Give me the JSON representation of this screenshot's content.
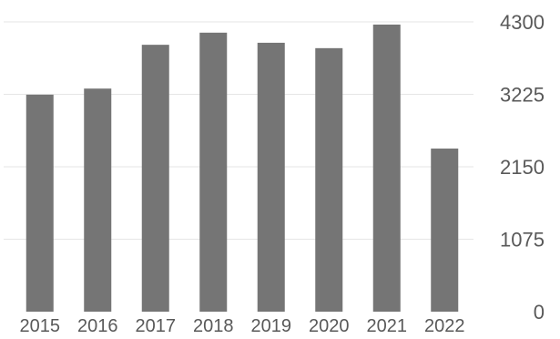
{
  "chart_data": {
    "type": "bar",
    "categories": [
      "2015",
      "2016",
      "2017",
      "2018",
      "2019",
      "2020",
      "2021",
      "2022"
    ],
    "values": [
      3220,
      3310,
      3960,
      4140,
      3990,
      3910,
      4260,
      2420
    ],
    "ylim": [
      0,
      4300
    ],
    "yticks": [
      "0",
      "1075",
      "2150",
      "3225",
      "4300"
    ],
    "ytick_values": [
      0,
      1075,
      2150,
      3225,
      4300
    ],
    "y_axis_position": "right",
    "grid": true,
    "legend": "none",
    "title": "",
    "xlabel": "",
    "ylabel": "",
    "colors": {
      "bar": "#757575",
      "grid": "#e6e6e6",
      "tick_text": "#595959"
    }
  }
}
